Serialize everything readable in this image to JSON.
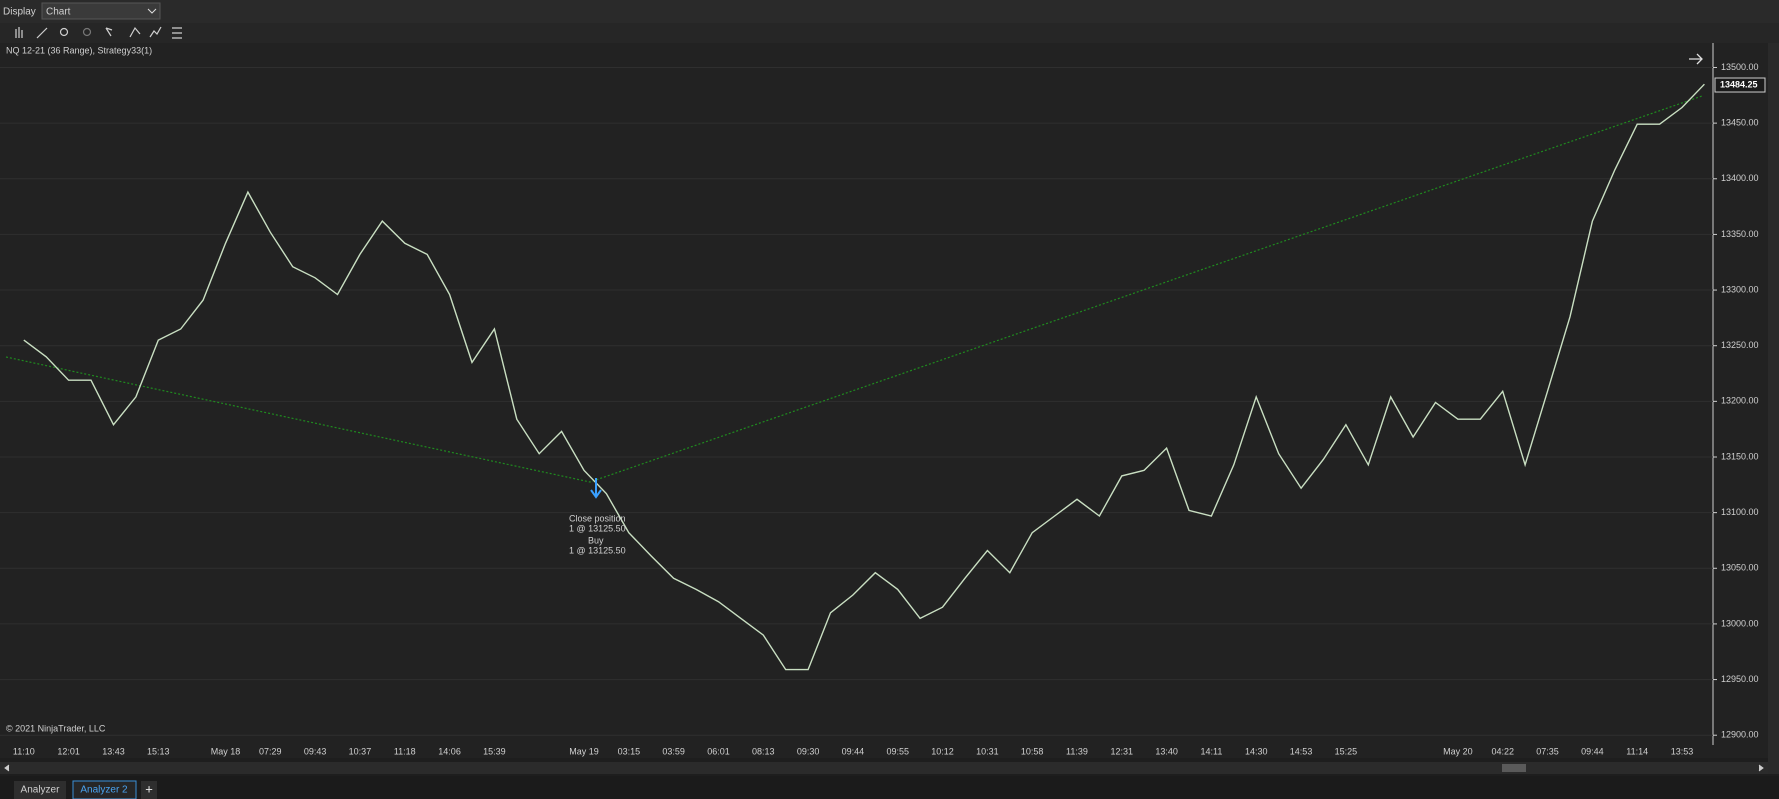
{
  "toolbar": {
    "display_label": "Display",
    "display_value": "Chart"
  },
  "chart_data": {
    "type": "line",
    "title": "NQ 12-21 (36 Range), Strategy33(1)",
    "footer": "© 2021 NinjaTrader, LLC",
    "categories": [
      "11:10",
      null,
      "12:01",
      null,
      "13:43",
      null,
      "15:13",
      null,
      null,
      "May 18",
      null,
      "07:29",
      null,
      "09:43",
      null,
      "10:37",
      null,
      "11:18",
      null,
      "14:06",
      null,
      "15:39",
      null,
      null,
      null,
      "May 19",
      null,
      "03:15",
      null,
      "03:59",
      null,
      "06:01",
      null,
      "08:13",
      null,
      "09:30",
      null,
      "09:44",
      null,
      "09:55",
      null,
      "10:12",
      null,
      "10:31",
      null,
      "10:58",
      null,
      "11:39",
      null,
      "12:31",
      null,
      "13:40",
      null,
      "14:11",
      null,
      "14:30",
      null,
      "14:53",
      null,
      "15:25",
      null,
      null,
      null,
      null,
      "May 20",
      null,
      "04:22",
      null,
      "07:35",
      null,
      "09:44",
      null,
      "11:14",
      null,
      "13:53",
      null
    ],
    "series": [
      {
        "name": "NQ 12-21",
        "color": "#c9dfc2",
        "values": [
          13255,
          13240,
          13219,
          13219,
          13179,
          13204,
          13255,
          13265,
          13291,
          13342,
          13388,
          13352,
          13321,
          13311,
          13296,
          13332,
          13362,
          13342,
          13332,
          13296,
          13235,
          13265,
          13184,
          13153,
          13173,
          13138,
          13117,
          13082,
          13061,
          13041,
          13031,
          13020,
          13005,
          12990,
          12959,
          12959,
          13010,
          13026,
          13046,
          13031,
          13005,
          13015,
          13041,
          13066,
          13046,
          13082,
          13097,
          13112,
          13097,
          13133,
          13138,
          13158,
          13102,
          13097,
          13143,
          13204,
          13153,
          13122,
          13148,
          13179,
          13143,
          13204,
          13168,
          13199,
          13184,
          13184,
          13209,
          13143,
          13209,
          13276,
          13362,
          13408,
          13449,
          13449,
          13464,
          13485
        ]
      }
    ],
    "last_price": 13484.25,
    "annotations": [
      "Close position",
      "1 @ 13125.50",
      "Buy",
      "1 @ 13125.50"
    ],
    "ylim": [
      12893,
      13522
    ],
    "yticks": [
      {
        "value": 12900,
        "label": "12900.00"
      },
      {
        "value": 12950,
        "label": "12950.00"
      },
      {
        "value": 13000,
        "label": "13000.00"
      },
      {
        "value": 13050,
        "label": "13050.00"
      },
      {
        "value": 13100,
        "label": "13100.00"
      },
      {
        "value": 13150,
        "label": "13150.00"
      },
      {
        "value": 13200,
        "label": "13200.00"
      },
      {
        "value": 13250,
        "label": "13250.00"
      },
      {
        "value": 13300,
        "label": "13300.00"
      },
      {
        "value": 13350,
        "label": "13350.00"
      },
      {
        "value": 13400,
        "label": "13400.00"
      },
      {
        "value": 13450,
        "label": "13450.00"
      },
      {
        "value": 13500,
        "label": "13500.00"
      }
    ],
    "grid": true
  },
  "tabs": [
    "Analyzer",
    "Analyzer 2",
    "+"
  ]
}
